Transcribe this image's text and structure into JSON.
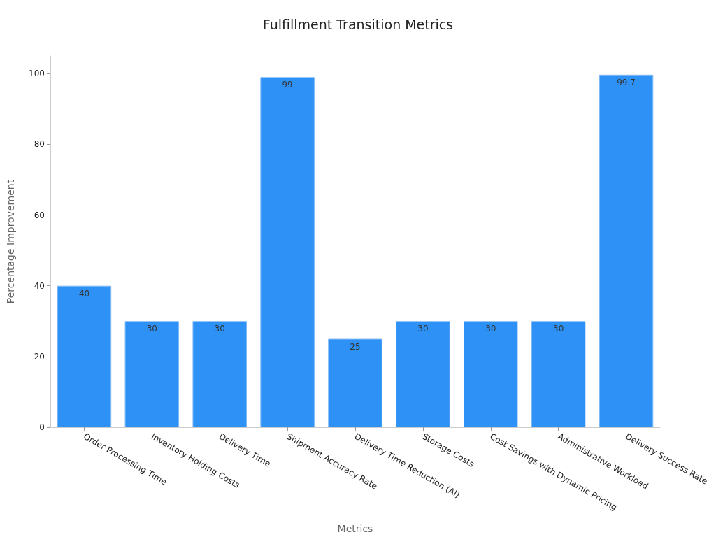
{
  "chart_data": {
    "type": "bar",
    "title": "Fulfillment Transition Metrics",
    "xlabel": "Metrics",
    "ylabel": "Percentage Improvement",
    "categories": [
      "Order Processing Time",
      "Inventory Holding Costs",
      "Delivery Time",
      "Shipment Accuracy Rate",
      "Delivery Time Reduction (AI)",
      "Storage Costs",
      "Cost Savings with Dynamic Pricing",
      "Administrative Workload",
      "Delivery Success Rate"
    ],
    "values": [
      40,
      30,
      30,
      99,
      25,
      30,
      30,
      30,
      99.7
    ],
    "color": "#2e91f5",
    "ylim": [
      0,
      105
    ],
    "yticks": [
      0,
      20,
      40,
      60,
      80,
      100
    ],
    "grid": false,
    "data_labels": true
  }
}
